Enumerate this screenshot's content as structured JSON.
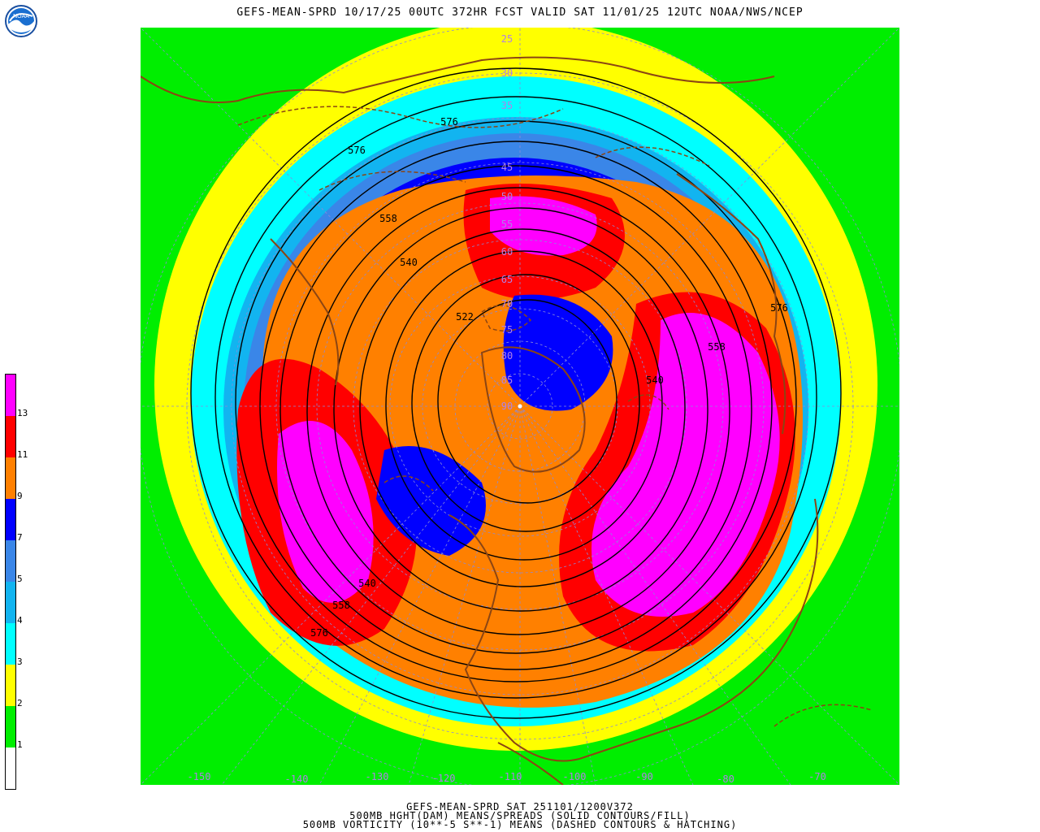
{
  "title": "GEFS-MEAN-SPRD 10/17/25 00UTC 372HR FCST VALID SAT 11/01/25 12UTC NOAA/NWS/NCEP",
  "logo_text": "NOAA",
  "footer": [
    "GEFS-MEAN-SPRD SAT 251101/1200V372",
    "500MB HGHT(DAM) MEANS/SPREADS (SOLID CONTOURS/FILL)",
    "500MB VORTICITY (10**-5 S**-1) MEANS (DASHED CONTOURS & HATCHING)"
  ],
  "legend": {
    "bands": [
      {
        "color": "#ff00ff"
      },
      {
        "color": "#ff0000"
      },
      {
        "color": "#ff8000"
      },
      {
        "color": "#0000ff"
      },
      {
        "color": "#3a86e8"
      },
      {
        "color": "#12b4f0"
      },
      {
        "color": "#00ffff"
      },
      {
        "color": "#ffff00"
      },
      {
        "color": "#00ee00"
      },
      {
        "color": "#ffffff"
      }
    ],
    "labels": [
      "13",
      "11",
      "9",
      "7",
      "5",
      "4",
      "3",
      "2",
      "1"
    ]
  },
  "map": {
    "latitude_labels": [
      "25",
      "30",
      "35",
      "45",
      "50",
      "55",
      "60",
      "65",
      "70",
      "75",
      "80",
      "85",
      "90"
    ],
    "longitude_labels": [
      "-150",
      "-140",
      "-130",
      "-120",
      "-110",
      "-100",
      "-90",
      "-80",
      "-70"
    ],
    "contour_labels": [
      "576",
      "576",
      "558",
      "540",
      "522",
      "540",
      "558",
      "576",
      "540",
      "558",
      "576"
    ]
  }
}
